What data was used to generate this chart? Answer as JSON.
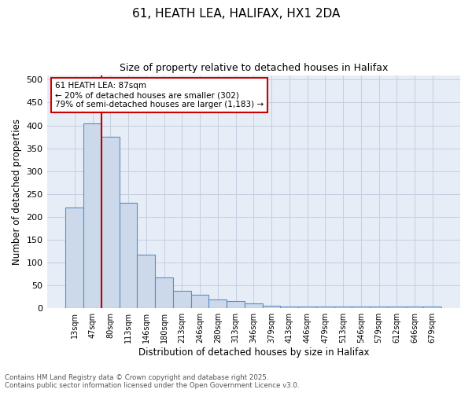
{
  "title1": "61, HEATH LEA, HALIFAX, HX1 2DA",
  "title2": "Size of property relative to detached houses in Halifax",
  "xlabel": "Distribution of detached houses by size in Halifax",
  "ylabel": "Number of detached properties",
  "categories": [
    "13sqm",
    "47sqm",
    "80sqm",
    "113sqm",
    "146sqm",
    "180sqm",
    "213sqm",
    "246sqm",
    "280sqm",
    "313sqm",
    "346sqm",
    "379sqm",
    "413sqm",
    "446sqm",
    "479sqm",
    "513sqm",
    "546sqm",
    "579sqm",
    "612sqm",
    "646sqm",
    "679sqm"
  ],
  "values": [
    220,
    405,
    375,
    230,
    118,
    68,
    38,
    30,
    20,
    15,
    10,
    5,
    3,
    3,
    3,
    3,
    3,
    3,
    3,
    3,
    3
  ],
  "bar_color": "#ccd9ea",
  "bar_edge_color": "#5b8dc8",
  "grid_color": "#c5cfe0",
  "bg_color": "#e6edf6",
  "vline_color": "#c00000",
  "annotation_text": "61 HEATH LEA: 87sqm\n← 20% of detached houses are smaller (302)\n79% of semi-detached houses are larger (1,183) →",
  "annotation_box_color": "#cc0000",
  "footer1": "Contains HM Land Registry data © Crown copyright and database right 2025.",
  "footer2": "Contains public sector information licensed under the Open Government Licence v3.0.",
  "ylim": [
    0,
    510
  ],
  "yticks": [
    0,
    50,
    100,
    150,
    200,
    250,
    300,
    350,
    400,
    450,
    500
  ]
}
